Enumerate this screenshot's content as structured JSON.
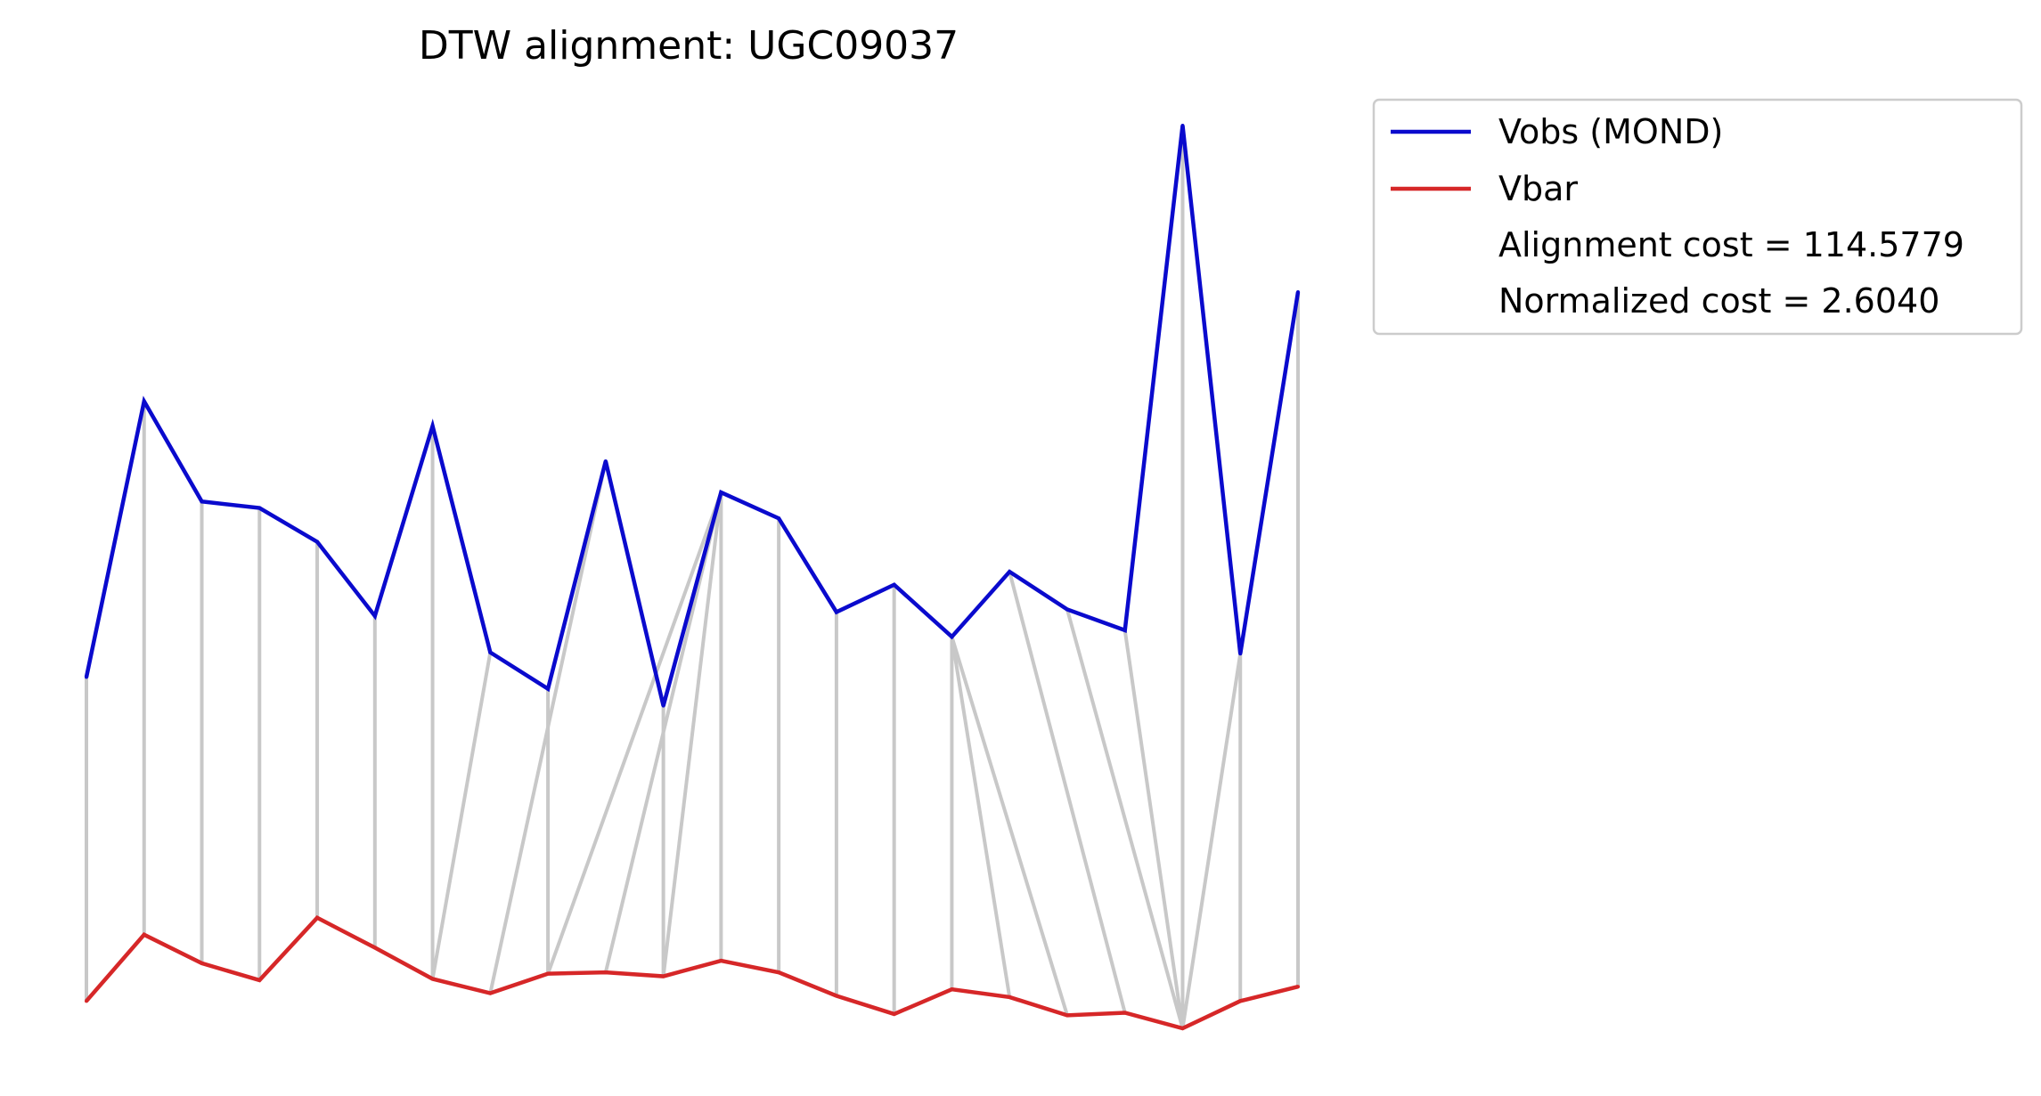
{
  "chart_data": {
    "type": "line",
    "title": "DTW alignment: UGC09037",
    "xlabel": "",
    "ylabel": "",
    "axes_visible": false,
    "grid": false,
    "legend_position": "upper-right-outside",
    "x": [
      0,
      1,
      2,
      3,
      4,
      5,
      6,
      7,
      8,
      9,
      10,
      11,
      12,
      13,
      14,
      15,
      16,
      17,
      18,
      19,
      20,
      21
    ],
    "series": [
      {
        "name": "Vobs (MOND)",
        "color": "#0a0acd",
        "values": [
          0.427,
          0.639,
          0.562,
          0.557,
          0.531,
          0.474,
          0.62,
          0.446,
          0.418,
          0.593,
          0.405,
          0.569,
          0.549,
          0.477,
          0.498,
          0.458,
          0.508,
          0.479,
          0.463,
          0.851,
          0.445,
          0.723
        ]
      },
      {
        "name": "Vbar",
        "color": "#d62728",
        "values": [
          0.178,
          0.229,
          0.207,
          0.194,
          0.242,
          0.219,
          0.195,
          0.184,
          0.199,
          0.2,
          0.197,
          0.209,
          0.2,
          0.182,
          0.168,
          0.187,
          0.181,
          0.167,
          0.169,
          0.157,
          0.178,
          0.189
        ]
      }
    ],
    "alignment_color": "#c8c8c8",
    "alignment_pairs": [
      [
        0,
        0
      ],
      [
        1,
        1
      ],
      [
        2,
        2
      ],
      [
        3,
        3
      ],
      [
        4,
        4
      ],
      [
        5,
        5
      ],
      [
        6,
        6
      ],
      [
        7,
        6
      ],
      [
        8,
        8
      ],
      [
        9,
        7
      ],
      [
        10,
        10
      ],
      [
        11,
        11
      ],
      [
        11,
        10
      ],
      [
        11,
        9
      ],
      [
        11,
        8
      ],
      [
        12,
        12
      ],
      [
        13,
        13
      ],
      [
        14,
        14
      ],
      [
        15,
        15
      ],
      [
        15,
        16
      ],
      [
        15,
        17
      ],
      [
        16,
        18
      ],
      [
        17,
        19
      ],
      [
        18,
        19
      ],
      [
        19,
        19
      ],
      [
        20,
        20
      ],
      [
        20,
        19
      ],
      [
        21,
        21
      ]
    ],
    "legend": {
      "entries": [
        {
          "label": "Vobs (MOND)",
          "color": "#0a0acd",
          "has_line": true
        },
        {
          "label": "Vbar",
          "color": "#d62728",
          "has_line": true
        },
        {
          "label": "Alignment cost = 114.5779",
          "has_line": false
        },
        {
          "label": "Normalized cost = 2.6040",
          "has_line": false
        }
      ]
    }
  }
}
